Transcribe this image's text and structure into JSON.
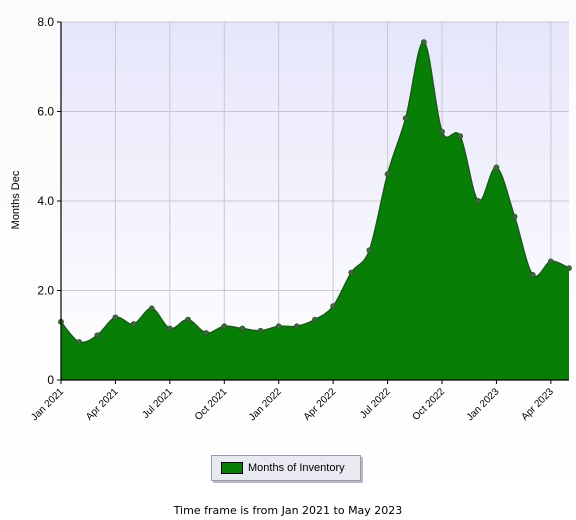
{
  "chart_data": {
    "type": "area",
    "title": "",
    "xlabel": "",
    "ylabel": "Months Dec",
    "ylim": [
      0,
      8
    ],
    "yticks": [
      "0",
      "2.0",
      "4.0",
      "6.0",
      "8.0"
    ],
    "ytick_values": [
      0,
      2,
      4,
      6,
      8
    ],
    "xtick_labels": [
      "Jan 2021",
      "Apr 2021",
      "Jul 2021",
      "Oct 2021",
      "Jan 2022",
      "Apr 2022",
      "Jul 2022",
      "Oct 2022",
      "Jan 2023",
      "Apr 2023"
    ],
    "xtick_index": [
      0,
      3,
      6,
      9,
      12,
      15,
      18,
      21,
      24,
      27
    ],
    "grid": true,
    "legend_position": "bottom-center",
    "colors": {
      "fill": "#077f07",
      "line": "#1c5a1c",
      "plot_bg_top": "#e6e6fb",
      "plot_bg_bottom": "#ffffff",
      "grid": "#c8c8d0"
    },
    "x": [
      "Jan 2021",
      "Feb 2021",
      "Mar 2021",
      "Apr 2021",
      "May 2021",
      "Jun 2021",
      "Jul 2021",
      "Aug 2021",
      "Sep 2021",
      "Oct 2021",
      "Nov 2021",
      "Dec 2021",
      "Jan 2022",
      "Feb 2022",
      "Mar 2022",
      "Apr 2022",
      "May 2022",
      "Jun 2022",
      "Jul 2022",
      "Aug 2022",
      "Sep 2022",
      "Oct 2022",
      "Nov 2022",
      "Dec 2022",
      "Jan 2023",
      "Feb 2023",
      "Mar 2023",
      "Apr 2023",
      "May 2023"
    ],
    "series": [
      {
        "name": "Months of Inventory",
        "values": [
          1.3,
          0.85,
          1.0,
          1.4,
          1.25,
          1.6,
          1.15,
          1.35,
          1.05,
          1.2,
          1.15,
          1.1,
          1.2,
          1.2,
          1.35,
          1.65,
          2.4,
          2.9,
          4.6,
          5.85,
          7.55,
          5.55,
          5.45,
          4.0,
          4.75,
          3.65,
          2.35,
          2.65,
          2.5
        ]
      }
    ]
  },
  "legend": {
    "label": "Months of Inventory"
  },
  "caption": "Time frame is from Jan 2021 to May 2023"
}
